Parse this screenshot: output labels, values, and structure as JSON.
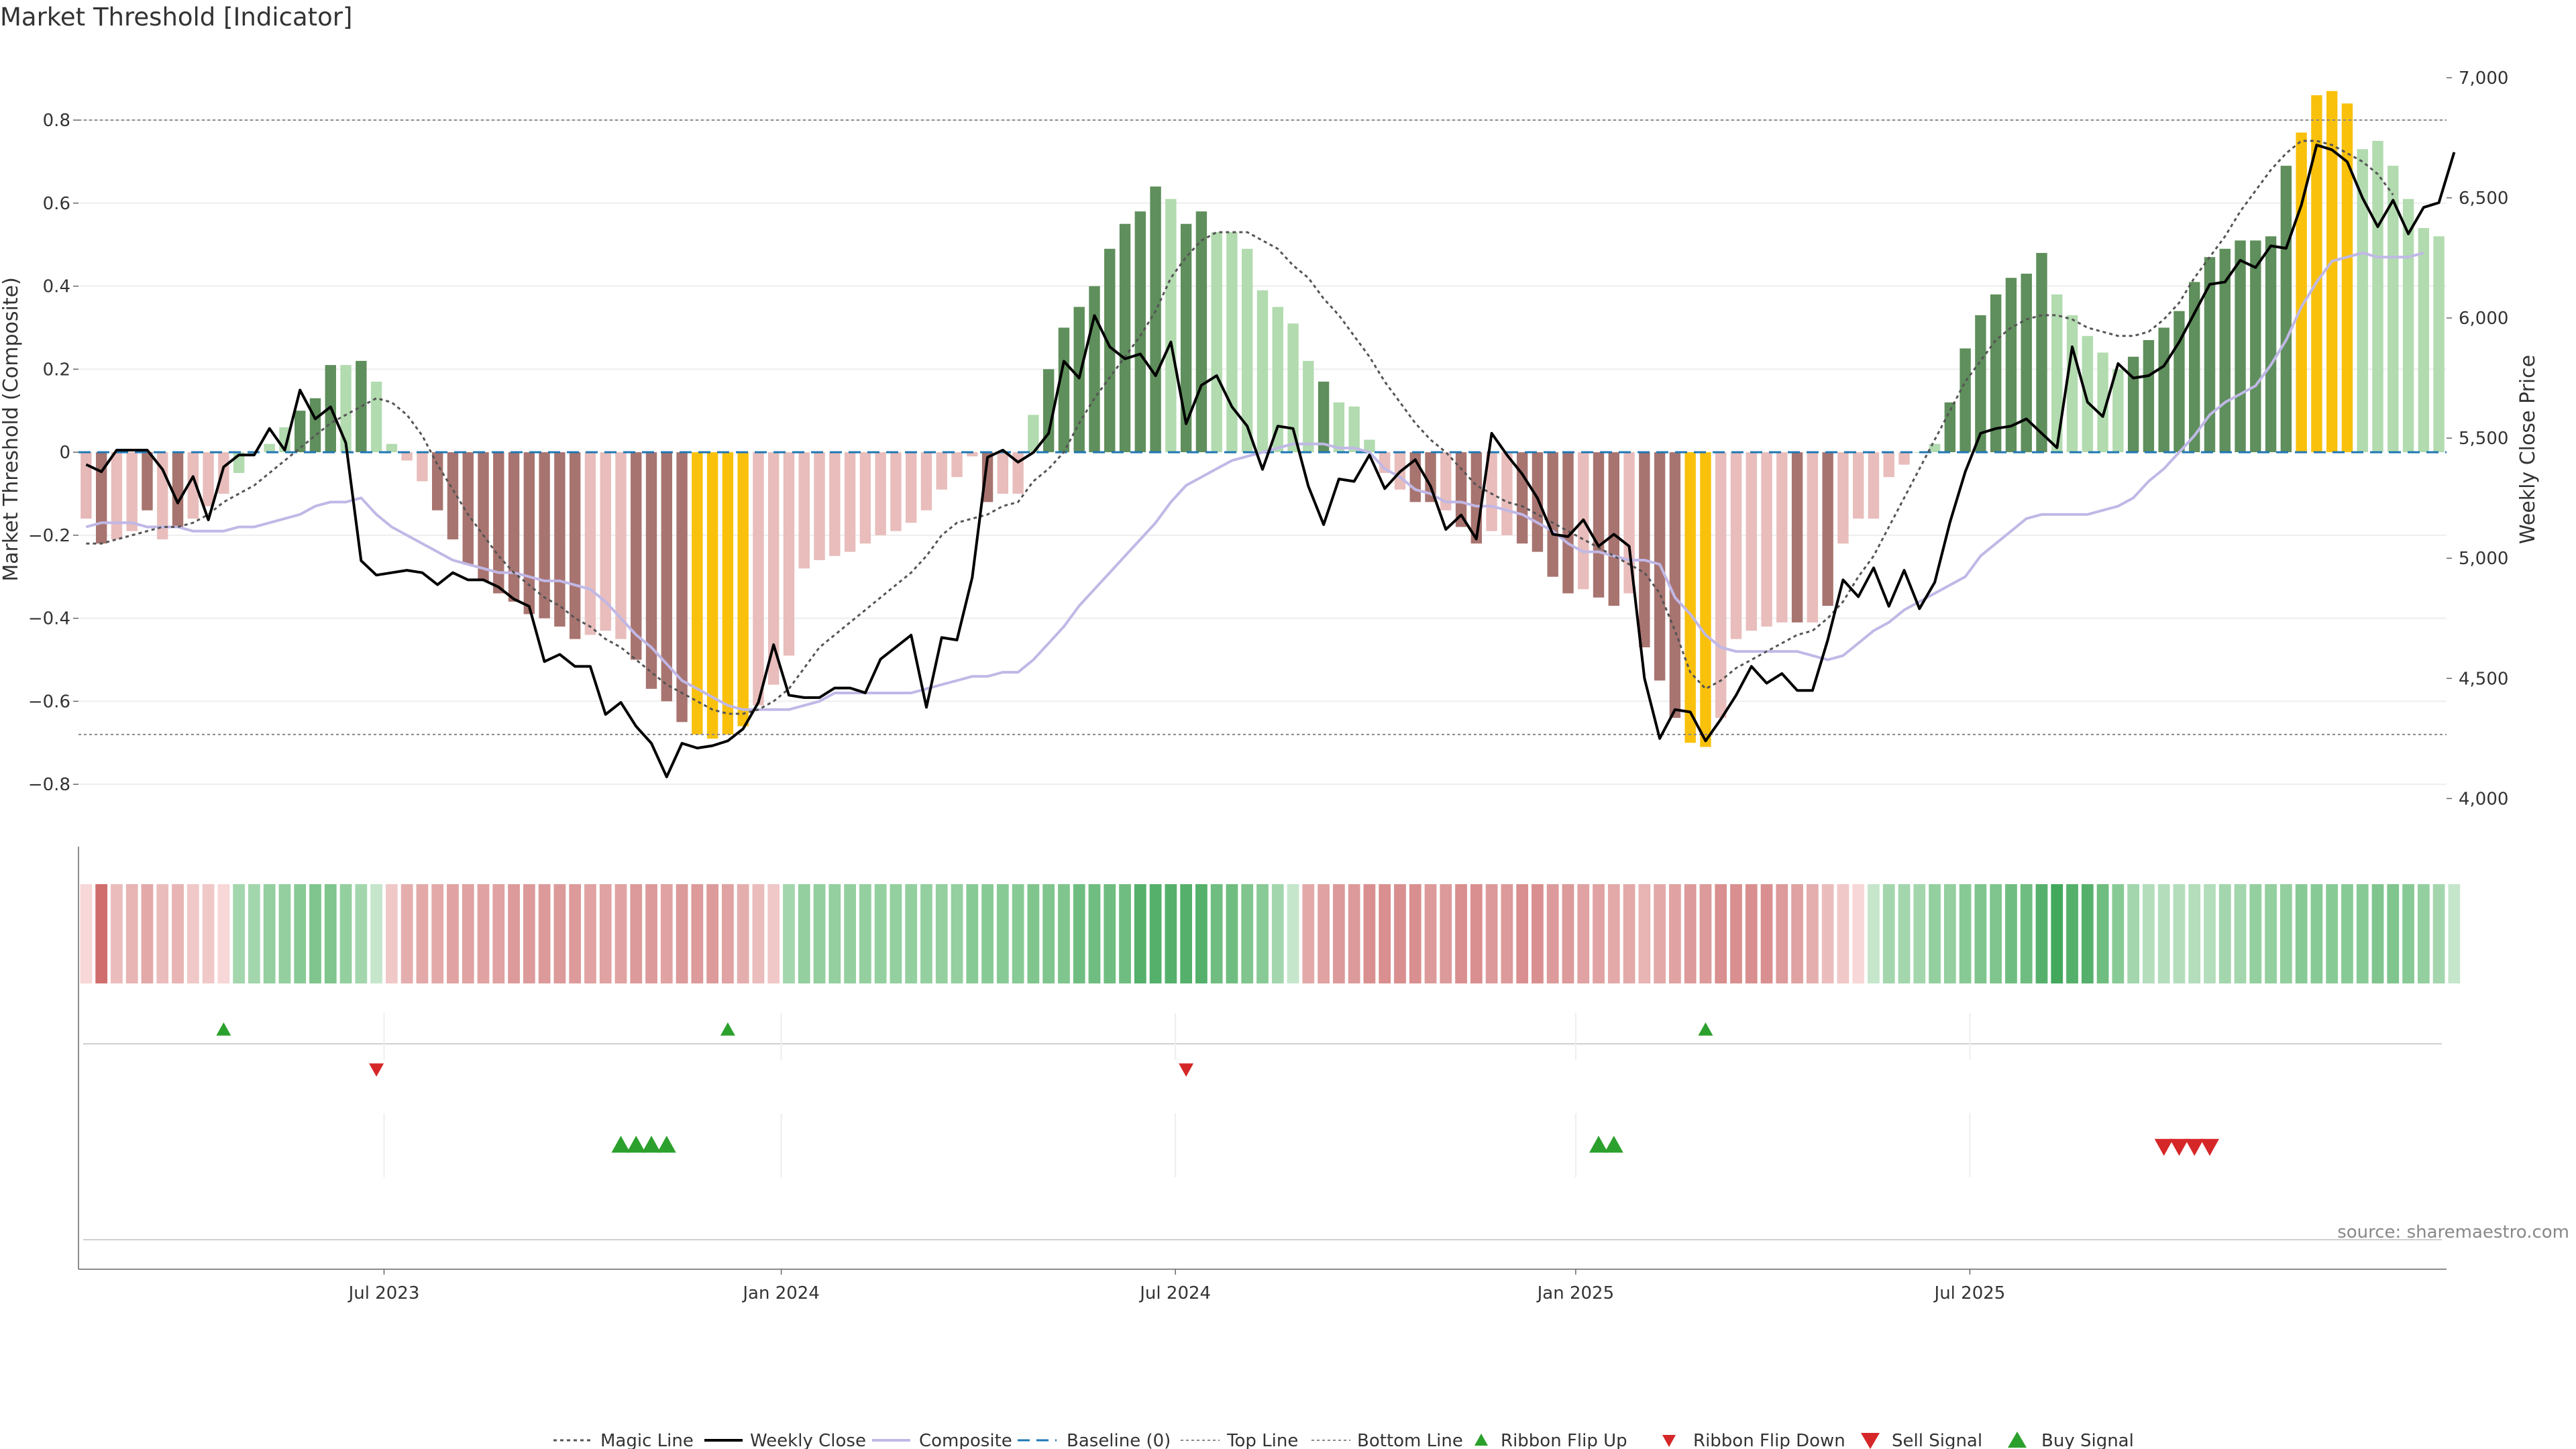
{
  "chart_data": {
    "type": "bar+line",
    "title": "Market Threshold [Indicator]",
    "ylabel_left": "Market Threshold (Composite)",
    "ylabel_right": "Weekly Close Price",
    "source": "source: sharemaestro.com",
    "ylim_left": [
      -0.95,
      0.96
    ],
    "ylim_right": [
      3800,
      7100
    ],
    "yticks_left": [
      {
        "value": 0.8,
        "label": "0.8"
      },
      {
        "value": 0.6,
        "label": "0.6"
      },
      {
        "value": 0.4,
        "label": "0.4"
      },
      {
        "value": 0.2,
        "label": "0.2"
      },
      {
        "value": 0,
        "label": "0"
      },
      {
        "value": -0.2,
        "label": "−0.2"
      },
      {
        "value": -0.4,
        "label": "−0.4"
      },
      {
        "value": -0.6,
        "label": "−0.6"
      },
      {
        "value": -0.8,
        "label": "−0.8"
      }
    ],
    "yticks_right": [
      {
        "value": 7000,
        "label": "7,000"
      },
      {
        "value": 6500,
        "label": "6,500"
      },
      {
        "value": 6000,
        "label": "6,000"
      },
      {
        "value": 5500,
        "label": "5,500"
      },
      {
        "value": 5000,
        "label": "5,000"
      },
      {
        "value": 4500,
        "label": "4,500"
      },
      {
        "value": 4000,
        "label": "4,000"
      }
    ],
    "xticks": [
      {
        "week": 19.5,
        "label": "Jul 2023"
      },
      {
        "week": 45.5,
        "label": "Jan 2024"
      },
      {
        "week": 71.3,
        "label": "Jul 2024"
      },
      {
        "week": 97.5,
        "label": "Jan 2025"
      },
      {
        "week": 123.3,
        "label": "Jul 2025"
      }
    ],
    "top_line": 0.8,
    "bottom_line": -0.68,
    "baseline": 0,
    "composite_bars": [
      -0.16,
      -0.22,
      -0.21,
      -0.19,
      -0.14,
      -0.21,
      -0.18,
      -0.16,
      -0.13,
      -0.1,
      -0.05,
      0.0,
      0.02,
      0.06,
      0.1,
      0.13,
      0.21,
      0.21,
      0.22,
      0.17,
      0.02,
      -0.02,
      -0.07,
      -0.14,
      -0.21,
      -0.27,
      -0.31,
      -0.34,
      -0.36,
      -0.39,
      -0.4,
      -0.42,
      -0.45,
      -0.44,
      -0.43,
      -0.45,
      -0.5,
      -0.57,
      -0.6,
      -0.65,
      -0.68,
      -0.69,
      -0.68,
      -0.66,
      -0.61,
      -0.56,
      -0.49,
      -0.28,
      -0.26,
      -0.25,
      -0.24,
      -0.22,
      -0.2,
      -0.19,
      -0.17,
      -0.14,
      -0.09,
      -0.06,
      -0.01,
      -0.12,
      -0.1,
      -0.1,
      0.09,
      0.2,
      0.3,
      0.35,
      0.4,
      0.49,
      0.55,
      0.58,
      0.64,
      0.61,
      0.55,
      0.58,
      0.53,
      0.53,
      0.49,
      0.39,
      0.35,
      0.31,
      0.22,
      0.17,
      0.12,
      0.11,
      0.03,
      -0.05,
      -0.09,
      -0.12,
      -0.12,
      -0.14,
      -0.18,
      -0.22,
      -0.19,
      -0.2,
      -0.22,
      -0.24,
      -0.3,
      -0.34,
      -0.33,
      -0.35,
      -0.37,
      -0.34,
      -0.47,
      -0.55,
      -0.64,
      -0.7,
      -0.71,
      -0.64,
      -0.45,
      -0.43,
      -0.42,
      -0.41,
      -0.41,
      -0.41,
      -0.37,
      -0.22,
      -0.16,
      -0.16,
      -0.06,
      -0.03,
      0.0,
      0.02,
      0.12,
      0.25,
      0.33,
      0.38,
      0.42,
      0.43,
      0.48,
      0.38,
      0.33,
      0.28,
      0.24,
      0.2,
      0.23,
      0.27,
      0.3,
      0.34,
      0.41,
      0.47,
      0.49,
      0.51,
      0.51,
      0.52,
      0.69,
      0.77,
      0.86,
      0.87,
      0.84,
      0.73,
      0.75,
      0.69,
      0.61,
      0.54,
      0.52
    ],
    "bar_colors": [
      "#e6b8b8",
      "#a87470",
      "#e8bdbb",
      "#e8bdbb",
      "#a87470",
      "#e8bdbb",
      "#a87470",
      "#e8bdbb",
      "#e8bdbb",
      "#e8bdbb",
      "#b2dbaf",
      "#b2dbaf",
      "#b2dbaf",
      "#b2dbaf",
      "#5f8f5c",
      "#5f8f5c",
      "#5f8f5c",
      "#b2dbaf",
      "#5f8f5c",
      "#b2dbaf",
      "#b2dbaf",
      "#e8bdbb",
      "#e8bdbb",
      "#a87470",
      "#a87470",
      "#a87470",
      "#a87470",
      "#a87470",
      "#a87470",
      "#a87470",
      "#a87470",
      "#a87470",
      "#a87470",
      "#e8bdbb",
      "#e8bdbb",
      "#e8bdbb",
      "#a87470",
      "#a87470",
      "#a87470",
      "#a87470",
      "#f9c10b",
      "#f9c10b",
      "#f9c10b",
      "#f9c10b",
      "#e8bdbb",
      "#e8bdbb",
      "#e8bdbb",
      "#e8bdbb",
      "#e8bdbb",
      "#e8bdbb",
      "#e8bdbb",
      "#e8bdbb",
      "#e8bdbb",
      "#e8bdbb",
      "#e8bdbb",
      "#e8bdbb",
      "#e8bdbb",
      "#e8bdbb",
      "#e8bdbb",
      "#a87470",
      "#e8bdbb",
      "#e8bdbb",
      "#b2dbaf",
      "#5f8f5c",
      "#5f8f5c",
      "#5f8f5c",
      "#5f8f5c",
      "#5f8f5c",
      "#5f8f5c",
      "#5f8f5c",
      "#5f8f5c",
      "#b2dbaf",
      "#5f8f5c",
      "#5f8f5c",
      "#b2dbaf",
      "#b2dbaf",
      "#b2dbaf",
      "#b2dbaf",
      "#b2dbaf",
      "#b2dbaf",
      "#b2dbaf",
      "#5f8f5c",
      "#b2dbaf",
      "#b2dbaf",
      "#b2dbaf",
      "#e8bdbb",
      "#e8bdbb",
      "#a87470",
      "#a87470",
      "#e8bdbb",
      "#a87470",
      "#a87470",
      "#e8bdbb",
      "#e8bdbb",
      "#a87470",
      "#a87470",
      "#a87470",
      "#a87470",
      "#e8bdbb",
      "#a87470",
      "#a87470",
      "#e8bdbb",
      "#a87470",
      "#a87470",
      "#a87470",
      "#f9c10b",
      "#f9c10b",
      "#e8bdbb",
      "#e8bdbb",
      "#e8bdbb",
      "#e8bdbb",
      "#e8bdbb",
      "#a87470",
      "#e8bdbb",
      "#a87470",
      "#e8bdbb",
      "#e8bdbb",
      "#e8bdbb",
      "#e8bdbb",
      "#e8bdbb",
      "#b2dbaf",
      "#b2dbaf",
      "#5f8f5c",
      "#5f8f5c",
      "#5f8f5c",
      "#5f8f5c",
      "#5f8f5c",
      "#5f8f5c",
      "#5f8f5c",
      "#b2dbaf",
      "#b2dbaf",
      "#b2dbaf",
      "#b2dbaf",
      "#b2dbaf",
      "#5f8f5c",
      "#5f8f5c",
      "#5f8f5c",
      "#5f8f5c",
      "#5f8f5c",
      "#5f8f5c",
      "#5f8f5c",
      "#5f8f5c",
      "#5f8f5c",
      "#5f8f5c",
      "#5f8f5c",
      "#f9c10b",
      "#f9c10b",
      "#f9c10b",
      "#f9c10b",
      "#b2dbaf",
      "#b2dbaf",
      "#b2dbaf",
      "#b2dbaf",
      "#b2dbaf",
      "#b2dbaf"
    ],
    "composite_line": [
      -0.18,
      -0.17,
      -0.17,
      -0.17,
      -0.18,
      -0.18,
      -0.18,
      -0.19,
      -0.19,
      -0.19,
      -0.18,
      -0.18,
      -0.17,
      -0.16,
      -0.15,
      -0.13,
      -0.12,
      -0.12,
      -0.11,
      -0.15,
      -0.18,
      -0.2,
      -0.22,
      -0.24,
      -0.26,
      -0.27,
      -0.28,
      -0.29,
      -0.29,
      -0.3,
      -0.31,
      -0.31,
      -0.32,
      -0.33,
      -0.36,
      -0.4,
      -0.44,
      -0.47,
      -0.51,
      -0.55,
      -0.57,
      -0.59,
      -0.61,
      -0.62,
      -0.62,
      -0.62,
      -0.62,
      -0.61,
      -0.6,
      -0.58,
      -0.58,
      -0.58,
      -0.58,
      -0.58,
      -0.58,
      -0.57,
      -0.56,
      -0.55,
      -0.54,
      -0.54,
      -0.53,
      -0.53,
      -0.5,
      -0.46,
      -0.42,
      -0.37,
      -0.33,
      -0.29,
      -0.25,
      -0.21,
      -0.17,
      -0.12,
      -0.08,
      -0.06,
      -0.04,
      -0.02,
      -0.01,
      0.0,
      0.01,
      0.02,
      0.02,
      0.02,
      0.01,
      0.01,
      0.0,
      -0.04,
      -0.06,
      -0.09,
      -0.1,
      -0.12,
      -0.12,
      -0.13,
      -0.13,
      -0.14,
      -0.15,
      -0.17,
      -0.19,
      -0.22,
      -0.24,
      -0.24,
      -0.25,
      -0.26,
      -0.26,
      -0.27,
      -0.35,
      -0.39,
      -0.44,
      -0.47,
      -0.48,
      -0.48,
      -0.48,
      -0.48,
      -0.48,
      -0.49,
      -0.5,
      -0.49,
      -0.46,
      -0.43,
      -0.41,
      -0.38,
      -0.36,
      -0.34,
      -0.32,
      -0.3,
      -0.25,
      -0.22,
      -0.19,
      -0.16,
      -0.15,
      -0.15,
      -0.15,
      -0.15,
      -0.14,
      -0.13,
      -0.11,
      -0.07,
      -0.04,
      0.0,
      0.04,
      0.09,
      0.12,
      0.14,
      0.16,
      0.21,
      0.27,
      0.35,
      0.41,
      0.46,
      0.47,
      0.48,
      0.47,
      0.47,
      0.47,
      0.48
    ],
    "magic_line": [
      -0.22,
      -0.22,
      -0.21,
      -0.2,
      -0.19,
      -0.18,
      -0.18,
      -0.17,
      -0.15,
      -0.12,
      -0.1,
      -0.08,
      -0.05,
      -0.02,
      0.01,
      0.04,
      0.07,
      0.09,
      0.11,
      0.13,
      0.12,
      0.09,
      0.04,
      -0.03,
      -0.09,
      -0.15,
      -0.2,
      -0.25,
      -0.29,
      -0.32,
      -0.35,
      -0.37,
      -0.4,
      -0.42,
      -0.45,
      -0.47,
      -0.5,
      -0.53,
      -0.56,
      -0.58,
      -0.6,
      -0.62,
      -0.63,
      -0.63,
      -0.62,
      -0.6,
      -0.57,
      -0.52,
      -0.47,
      -0.44,
      -0.41,
      -0.38,
      -0.35,
      -0.32,
      -0.29,
      -0.25,
      -0.2,
      -0.17,
      -0.16,
      -0.15,
      -0.13,
      -0.12,
      -0.07,
      -0.04,
      0.0,
      0.07,
      0.13,
      0.18,
      0.23,
      0.28,
      0.34,
      0.42,
      0.47,
      0.51,
      0.53,
      0.53,
      0.53,
      0.51,
      0.49,
      0.45,
      0.42,
      0.37,
      0.33,
      0.28,
      0.23,
      0.17,
      0.12,
      0.07,
      0.03,
      0.0,
      -0.04,
      -0.08,
      -0.1,
      -0.12,
      -0.13,
      -0.15,
      -0.17,
      -0.19,
      -0.21,
      -0.23,
      -0.25,
      -0.27,
      -0.29,
      -0.34,
      -0.43,
      -0.53,
      -0.57,
      -0.55,
      -0.52,
      -0.5,
      -0.48,
      -0.46,
      -0.44,
      -0.43,
      -0.4,
      -0.36,
      -0.3,
      -0.25,
      -0.18,
      -0.11,
      -0.04,
      0.03,
      0.1,
      0.17,
      0.22,
      0.27,
      0.3,
      0.32,
      0.33,
      0.33,
      0.32,
      0.3,
      0.29,
      0.28,
      0.28,
      0.29,
      0.32,
      0.36,
      0.42,
      0.47,
      0.52,
      0.58,
      0.63,
      0.68,
      0.72,
      0.75,
      0.75,
      0.74,
      0.72,
      0.7,
      0.67,
      0.62
    ],
    "weekly_close": [
      5390,
      5360,
      5450,
      5450,
      5450,
      5370,
      5230,
      5340,
      5160,
      5380,
      5430,
      5430,
      5540,
      5450,
      5700,
      5580,
      5630,
      5480,
      4990,
      4930,
      4940,
      4950,
      4940,
      4890,
      4940,
      4910,
      4910,
      4880,
      4830,
      4800,
      4570,
      4600,
      4550,
      4550,
      4350,
      4400,
      4300,
      4230,
      4090,
      4230,
      4210,
      4220,
      4240,
      4290,
      4400,
      4640,
      4430,
      4420,
      4420,
      4460,
      4460,
      4440,
      4580,
      4630,
      4680,
      4380,
      4670,
      4660,
      4920,
      5420,
      5450,
      5400,
      5440,
      5520,
      5820,
      5750,
      6010,
      5880,
      5830,
      5850,
      5760,
      5900,
      5560,
      5720,
      5760,
      5630,
      5550,
      5370,
      5550,
      5540,
      5300,
      5140,
      5330,
      5320,
      5430,
      5290,
      5360,
      5410,
      5300,
      5120,
      5180,
      5080,
      5520,
      5430,
      5350,
      5250,
      5100,
      5090,
      5160,
      5050,
      5100,
      5050,
      4500,
      4250,
      4370,
      4360,
      4240,
      4330,
      4430,
      4550,
      4480,
      4520,
      4450,
      4450,
      4660,
      4910,
      4840,
      4960,
      4800,
      4950,
      4790,
      4900,
      5150,
      5360,
      5520,
      5540,
      5550,
      5580,
      5520,
      5460,
      5880,
      5650,
      5590,
      5810,
      5750,
      5760,
      5800,
      5900,
      6020,
      6140,
      6150,
      6240,
      6210,
      6300,
      6290,
      6470,
      6720,
      6700,
      6650,
      6500,
      6380,
      6490,
      6350,
      6460,
      6480,
      6690
    ],
    "ribbon": [
      "#f7d7d7",
      "#d06e6e",
      "#ebbcbc",
      "#e8b4b4",
      "#e3a9a9",
      "#ebbcbc",
      "#e8b4b4",
      "#f0c8c8",
      "#f0c8c8",
      "#f7d7d7",
      "#a3d6ad",
      "#a3d6ad",
      "#93cf9f",
      "#93cf9f",
      "#88ca95",
      "#7fc58d",
      "#7fc58d",
      "#93cf9f",
      "#a3d6ad",
      "#c6e6cc",
      "#f0c8c8",
      "#e5aeae",
      "#e3a9a9",
      "#e3a9a9",
      "#e0a2a2",
      "#e0a2a2",
      "#e0a2a2",
      "#e0a2a2",
      "#dc9a9a",
      "#dc9a9a",
      "#dc9a9a",
      "#dc9a9a",
      "#dc9a9a",
      "#e0a2a2",
      "#e0a2a2",
      "#e0a2a2",
      "#dc9a9a",
      "#dc9a9a",
      "#e0a2a2",
      "#dc9a9a",
      "#dc9a9a",
      "#dc9a9a",
      "#e0a2a2",
      "#e5aeae",
      "#ebbcbc",
      "#f0c8c8",
      "#a3d6ad",
      "#93cf9f",
      "#93cf9f",
      "#93cf9f",
      "#93cf9f",
      "#93cf9f",
      "#93cf9f",
      "#93cf9f",
      "#93cf9f",
      "#93cf9f",
      "#93cf9f",
      "#93cf9f",
      "#88ca95",
      "#88ca95",
      "#88ca95",
      "#88ca95",
      "#7fc58d",
      "#7fc58d",
      "#7fc58d",
      "#6fbd80",
      "#6fbd80",
      "#6fbd80",
      "#6fbd80",
      "#55b06b",
      "#55b06b",
      "#55b06b",
      "#55b06b",
      "#55b06b",
      "#6fbd80",
      "#6fbd80",
      "#7fc58d",
      "#88ca95",
      "#a3d6ad",
      "#c6e6cc",
      "#e3a9a9",
      "#e0a2a2",
      "#dc9a9a",
      "#dc9a9a",
      "#d98f8f",
      "#d98f8f",
      "#d98f8f",
      "#d98f8f",
      "#dc9a9a",
      "#dc9a9a",
      "#d98f8f",
      "#d98f8f",
      "#dc9a9a",
      "#dc9a9a",
      "#d98f8f",
      "#d98f8f",
      "#dc9a9a",
      "#dc9a9a",
      "#e0a2a2",
      "#e0a2a2",
      "#e3a9a9",
      "#e3a9a9",
      "#e8b4b4",
      "#e3a9a9",
      "#e0a2a2",
      "#dc9a9a",
      "#dc9a9a",
      "#d98f8f",
      "#d98f8f",
      "#d98f8f",
      "#d98f8f",
      "#dc9a9a",
      "#e0a2a2",
      "#e5aeae",
      "#ebbcbc",
      "#f0c8c8",
      "#f7d7d7",
      "#c6e6cc",
      "#a3d6ad",
      "#a3d6ad",
      "#a3d6ad",
      "#93cf9f",
      "#93cf9f",
      "#88ca95",
      "#7fc58d",
      "#7fc58d",
      "#6fbd80",
      "#6fbd80",
      "#55b06b",
      "#42a95c",
      "#55b06b",
      "#55b06b",
      "#6fbd80",
      "#88ca95",
      "#a3d6ad",
      "#b3ddbb",
      "#b3ddbb",
      "#b3ddbb",
      "#b3ddbb",
      "#b3ddbb",
      "#a3d6ad",
      "#a3d6ad",
      "#93cf9f",
      "#93cf9f",
      "#93cf9f",
      "#88ca95",
      "#88ca95",
      "#88ca95",
      "#88ca95",
      "#88ca95",
      "#7fc58d",
      "#7fc58d",
      "#88ca95",
      "#93cf9f",
      "#a3d6ad",
      "#c6e6cc"
    ],
    "ribbon_flip_up": [
      9,
      42,
      106
    ],
    "ribbon_flip_down": [
      19,
      72
    ],
    "buy_signals": [
      35,
      36,
      37,
      38,
      99,
      100
    ],
    "sell_signals": [
      136,
      137,
      138,
      139
    ],
    "legend": [
      "Magic Line",
      "Weekly Close",
      "Composite",
      "Baseline (0)",
      "Top Line",
      "Bottom Line",
      "Ribbon Flip Up",
      "Ribbon Flip Down",
      "Sell Signal",
      "Buy Signal"
    ],
    "colors": {
      "positive_strong": "#5f8f5c",
      "positive_weak": "#b2dbaf",
      "negative_strong": "#a87470",
      "negative_weak": "#e8bdbb",
      "extreme": "#f9c10b",
      "weekly_close": "#000000",
      "composite": "#c0b8e6",
      "magic": "#555555",
      "baseline": "#1f77b4",
      "threshold_lines": "#888888",
      "flip_up": "#2ca02c",
      "flip_down": "#d62728",
      "buy": "#2ca02c",
      "sell": "#d62728"
    }
  }
}
